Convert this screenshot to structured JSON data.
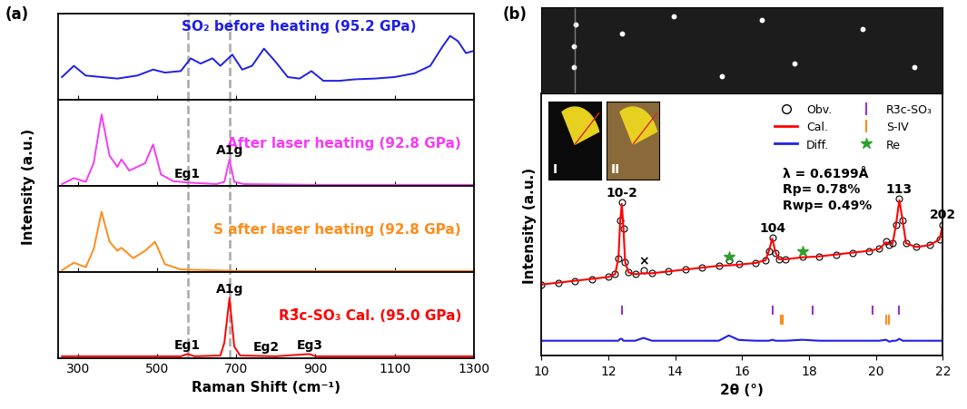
{
  "chart_data": [
    {
      "type": "line",
      "title": "(a)",
      "xlabel": "Raman Shift (cm⁻¹)",
      "ylabel": "Intensity (a.u.)",
      "xlim": [
        250,
        1300
      ],
      "xticks": [
        300,
        500,
        700,
        900,
        1100,
        1300
      ],
      "ylim": [
        0,
        1.15
      ],
      "tick_labels": "x",
      "vlines": [
        577,
        683
      ],
      "series": [
        {
          "name": "SO₂ before heating (95.2 GPa)",
          "color": "#1f1fe6",
          "x": [
            260,
            290,
            320,
            360,
            400,
            450,
            490,
            520,
            560,
            585,
            610,
            640,
            660,
            690,
            715,
            740,
            770,
            800,
            830,
            860,
            890,
            920,
            960,
            1000,
            1050,
            1100,
            1150,
            1190,
            1220,
            1240,
            1260,
            1280,
            1300
          ],
          "values": [
            0.3,
            0.45,
            0.32,
            0.3,
            0.28,
            0.32,
            0.4,
            0.36,
            0.38,
            0.55,
            0.48,
            0.55,
            0.45,
            0.6,
            0.4,
            0.45,
            0.68,
            0.5,
            0.3,
            0.28,
            0.38,
            0.25,
            0.25,
            0.27,
            0.28,
            0.3,
            0.35,
            0.45,
            0.7,
            0.85,
            0.78,
            0.62,
            0.65
          ],
          "annotations": []
        },
        {
          "name": "After laser heating (92.8 GPa)",
          "color": "#f53cf5",
          "x": [
            260,
            290,
            320,
            340,
            360,
            380,
            400,
            410,
            430,
            470,
            490,
            510,
            540,
            580,
            650,
            670,
            683,
            695,
            720,
            900,
            1300
          ],
          "values": [
            0.02,
            0.1,
            0.05,
            0.3,
            0.95,
            0.4,
            0.25,
            0.35,
            0.2,
            0.3,
            0.55,
            0.15,
            0.06,
            0.04,
            0.02,
            0.05,
            0.35,
            0.05,
            0.02,
            0.01,
            0.01
          ],
          "annotations": [
            {
              "text": "Eg1",
              "x": 577
            },
            {
              "text": "A1g",
              "x": 683
            }
          ]
        },
        {
          "name": "S after laser heating (92.8 GPa)",
          "color": "#ff8c1a",
          "x": [
            260,
            290,
            320,
            340,
            360,
            380,
            400,
            410,
            440,
            470,
            495,
            520,
            560,
            700,
            1300
          ],
          "values": [
            0.02,
            0.12,
            0.06,
            0.3,
            0.8,
            0.4,
            0.28,
            0.32,
            0.18,
            0.28,
            0.4,
            0.1,
            0.03,
            0.01,
            0.01
          ],
          "annotations": []
        },
        {
          "name": "R3̄c-SO₃ Cal. (95.0 GPa)",
          "color": "#ff0000",
          "x": [
            260,
            560,
            577,
            595,
            660,
            670,
            683,
            695,
            710,
            800,
            885,
            900,
            1300
          ],
          "values": [
            0.02,
            0.02,
            0.05,
            0.02,
            0.03,
            0.2,
            0.8,
            0.15,
            0.03,
            0.02,
            0.05,
            0.02,
            0.02
          ],
          "annotations": [
            {
              "text": "Eg1",
              "x": 577
            },
            {
              "text": "A1g",
              "x": 683
            },
            {
              "text": "Eg2",
              "x": 775
            },
            {
              "text": "Eg3",
              "x": 885
            }
          ]
        }
      ]
    },
    {
      "type": "scatter",
      "title": "(b)",
      "xlabel": "2θ (°)",
      "ylabel": "Intensity (a.u.)",
      "xlim": [
        10,
        22
      ],
      "xticks": [
        10,
        12,
        14,
        16,
        18,
        20,
        22
      ],
      "ylim": [
        0,
        140
      ],
      "tick_labels": "x",
      "legend": "upper right",
      "insets": [
        "I",
        "II"
      ],
      "notes": [
        "λ = 0.6199Å",
        "Rp= 0.78%",
        "Rwp= 0.49%"
      ],
      "annotations": [
        {
          "text": "10-2",
          "x": 12.4
        },
        {
          "text": "104",
          "x": 16.9
        },
        {
          "text": "113",
          "x": 20.7
        },
        {
          "text": "202",
          "x": 22.0
        },
        {
          "text": "×",
          "x": 13.05
        }
      ],
      "series": [
        {
          "name": "Obv.",
          "type": "scatter",
          "marker": "o",
          "color": "#000000",
          "x": [
            10.0,
            10.5,
            11.0,
            11.5,
            12.0,
            12.2,
            12.3,
            12.35,
            12.4,
            12.45,
            12.5,
            12.6,
            12.8,
            13.05,
            13.3,
            13.8,
            14.3,
            14.8,
            15.3,
            15.6,
            15.9,
            16.4,
            16.7,
            16.8,
            16.9,
            17.0,
            17.1,
            17.3,
            17.8,
            18.3,
            18.8,
            19.3,
            19.8,
            20.1,
            20.3,
            20.4,
            20.5,
            20.6,
            20.7,
            20.8,
            20.9,
            21.2,
            21.6,
            21.9,
            22.0
          ],
          "values": [
            38,
            39,
            40,
            41,
            42,
            43.5,
            52,
            72,
            82,
            68,
            50,
            44.5,
            43.5,
            45.5,
            44,
            45,
            46,
            47,
            48,
            51,
            49,
            49.5,
            51,
            56,
            63,
            55,
            51.5,
            51.5,
            53,
            53,
            54,
            55,
            56,
            57,
            61,
            59,
            60,
            70,
            84,
            72,
            60,
            58,
            59,
            62,
            70
          ]
        },
        {
          "name": "Cal.",
          "type": "line",
          "color": "#ff0000",
          "x": [
            10.0,
            10.5,
            11.0,
            11.5,
            12.0,
            12.2,
            12.3,
            12.35,
            12.4,
            12.45,
            12.5,
            12.6,
            12.8,
            13.05,
            13.3,
            13.8,
            14.3,
            14.8,
            15.3,
            15.6,
            15.9,
            16.4,
            16.7,
            16.8,
            16.9,
            17.0,
            17.1,
            17.3,
            17.8,
            18.3,
            18.8,
            19.3,
            19.8,
            20.1,
            20.3,
            20.4,
            20.5,
            20.6,
            20.7,
            20.8,
            20.9,
            21.2,
            21.6,
            21.9,
            22.0
          ],
          "values": [
            38,
            39,
            40,
            41,
            42,
            43.5,
            52,
            71,
            81,
            68,
            50,
            44.5,
            43.5,
            44,
            44,
            45,
            46,
            47,
            48,
            48.2,
            48.6,
            49.5,
            51,
            56,
            62.5,
            55,
            51.5,
            51.5,
            52.5,
            53,
            54,
            55,
            56,
            57,
            60.5,
            59.5,
            60,
            70,
            83,
            72,
            60,
            58,
            59,
            62,
            70
          ]
        },
        {
          "name": "Diff.",
          "type": "line",
          "color": "#1f1fe6",
          "x": [
            10.0,
            10.5,
            11.0,
            11.5,
            12.0,
            12.2,
            12.3,
            12.35,
            12.4,
            12.45,
            12.5,
            12.6,
            12.8,
            13.05,
            13.3,
            13.8,
            14.3,
            14.8,
            15.3,
            15.6,
            15.9,
            16.4,
            16.7,
            16.8,
            16.9,
            17.0,
            17.1,
            17.3,
            17.8,
            18.3,
            18.8,
            19.3,
            19.8,
            20.1,
            20.3,
            20.4,
            20.5,
            20.6,
            20.7,
            20.8,
            20.9,
            21.2,
            21.6,
            21.9,
            22.0
          ],
          "values": [
            8,
            8,
            8,
            8,
            8,
            8,
            8,
            9,
            9,
            8,
            8,
            8,
            8,
            9.5,
            8,
            8,
            8,
            8,
            8,
            10.8,
            8.4,
            8,
            8,
            8,
            8.5,
            8,
            8,
            8,
            8.5,
            8,
            8,
            8,
            8,
            8,
            8.5,
            7.5,
            8,
            8,
            9,
            8,
            8,
            8,
            8,
            8,
            8
          ]
        },
        {
          "name": "R3̄c-SO₃",
          "type": "tick",
          "marker": "|",
          "color": "#9933cc",
          "x": [
            12.4,
            16.9,
            18.1,
            19.9,
            20.7,
            22.0
          ]
        },
        {
          "name": "S-IV",
          "type": "tick",
          "marker": "|",
          "color": "#ff8c1a",
          "x": [
            17.15,
            17.2,
            20.3,
            20.4
          ]
        },
        {
          "name": "Re",
          "type": "scatter",
          "marker": "*",
          "color": "#2ca02c",
          "x": [
            15.6,
            17.8
          ],
          "values": [
            53,
            56
          ]
        }
      ]
    }
  ]
}
